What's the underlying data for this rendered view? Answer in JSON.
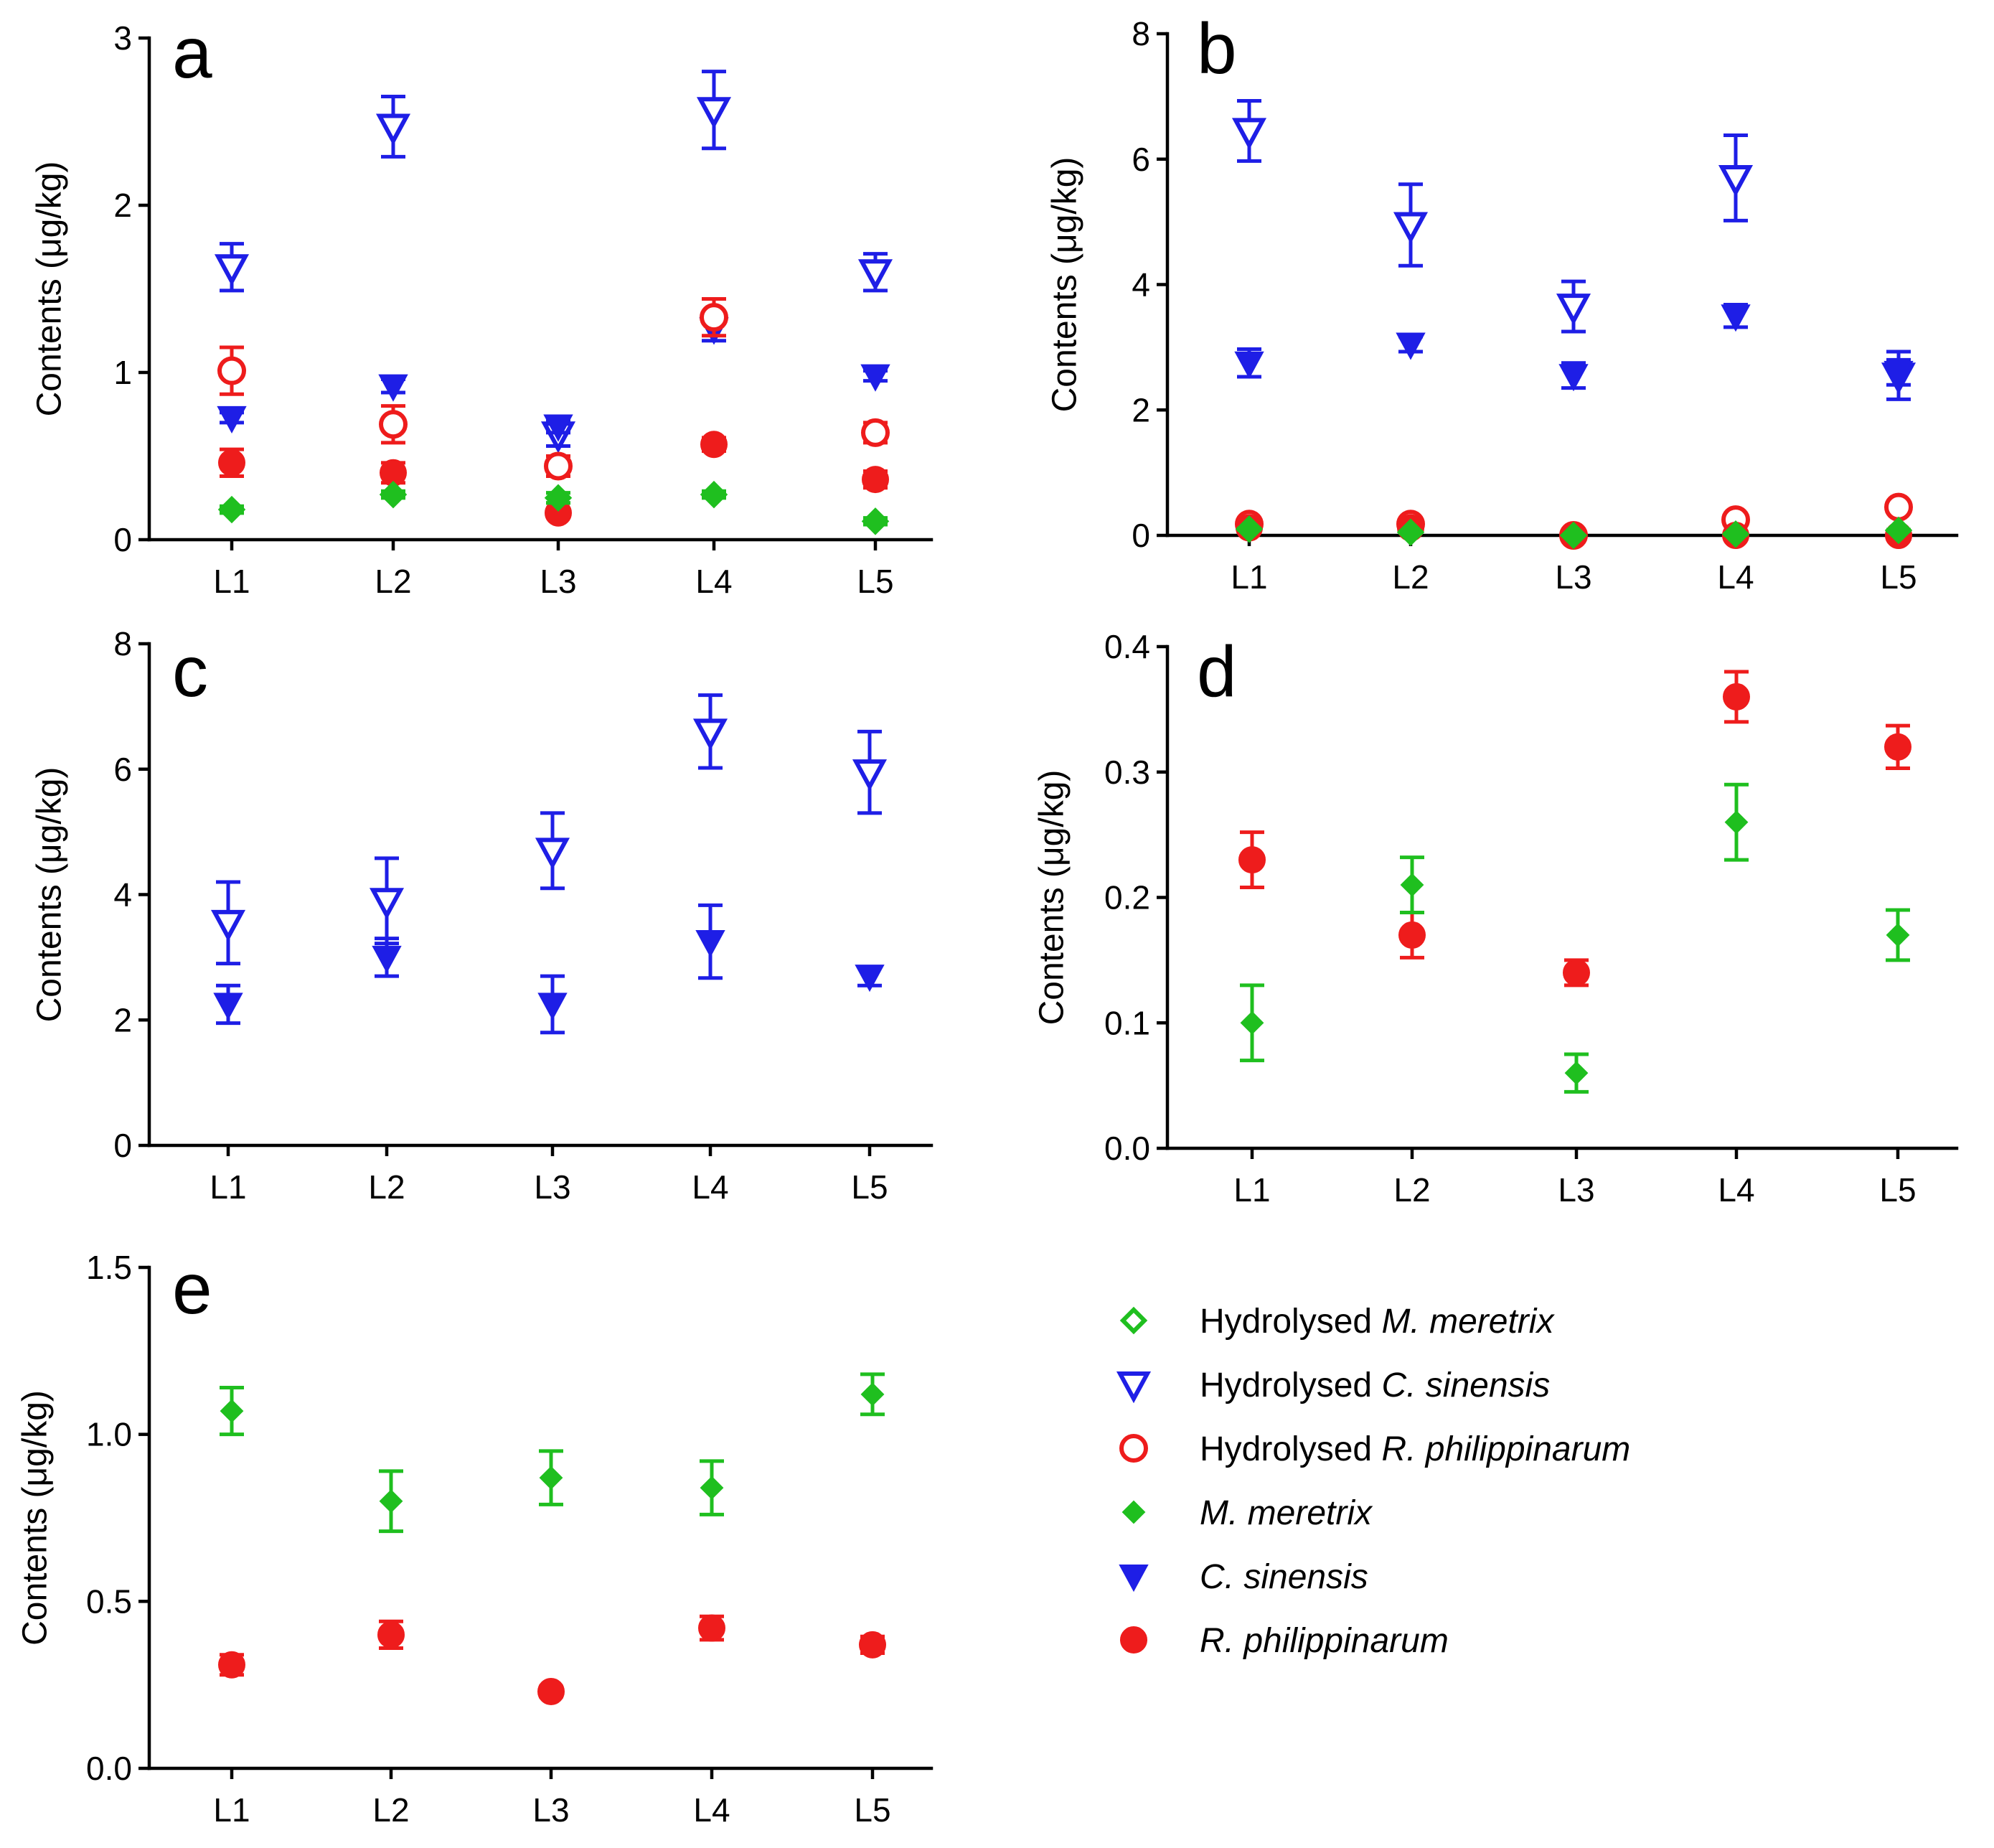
{
  "colors": {
    "mer": "#1fbf1f",
    "cs": "#1e1ee6",
    "rp": "#ee1c1c"
  },
  "legend": [
    {
      "key": "h_mer",
      "prefix": "Hydrolysed ",
      "species": "M. meretrix",
      "color": "#1fbf1f",
      "marker": "diamond-open"
    },
    {
      "key": "h_cs",
      "prefix": "Hydrolysed ",
      "species": "C. sinensis",
      "color": "#1e1ee6",
      "marker": "triangle-open"
    },
    {
      "key": "h_rp",
      "prefix": "Hydrolysed ",
      "species": "R. philippinarum",
      "color": "#ee1c1c",
      "marker": "circle-open"
    },
    {
      "key": "mer",
      "prefix": "",
      "species": "M. meretrix",
      "color": "#1fbf1f",
      "marker": "diamond"
    },
    {
      "key": "cs",
      "prefix": "",
      "species": "C. sinensis",
      "color": "#1e1ee6",
      "marker": "triangle"
    },
    {
      "key": "rp",
      "prefix": "",
      "species": "R. philippinarum",
      "color": "#ee1c1c",
      "marker": "circle"
    }
  ],
  "chart_data": [
    {
      "panel": "a",
      "type": "scatter",
      "ylabel": "Contents (μg/kg)",
      "categories": [
        "L1",
        "L2",
        "L3",
        "L4",
        "L5"
      ],
      "ylim": [
        0,
        3
      ],
      "yticks": [
        0,
        1,
        2,
        3
      ],
      "ytick_labels": [
        "0",
        "1",
        "2",
        "3"
      ],
      "series": [
        {
          "key": "h_cs",
          "name": "Hydrolysed C. sinensis",
          "values": [
            1.63,
            2.47,
            0.63,
            2.57,
            1.6
          ],
          "errors": [
            0.14,
            0.18,
            0.07,
            0.23,
            0.11
          ]
        },
        {
          "key": "cs",
          "name": "C. sinensis",
          "values": [
            0.73,
            0.92,
            0.68,
            1.26,
            0.98
          ],
          "errors": [
            0.03,
            0.04,
            0.04,
            0.07,
            0.03
          ]
        },
        {
          "key": "h_rp",
          "name": "Hydrolysed R. philippinarum",
          "values": [
            1.01,
            0.69,
            0.44,
            1.33,
            0.64
          ],
          "errors": [
            0.14,
            0.11,
            0.06,
            0.11,
            0.06
          ]
        },
        {
          "key": "rp",
          "name": "R. philippinarum",
          "values": [
            0.46,
            0.4,
            0.16,
            0.57,
            0.36
          ],
          "errors": [
            0.08,
            0.06,
            0.02,
            0.04,
            0.05
          ]
        },
        {
          "key": "h_mer",
          "name": "Hydrolysed M. meretrix",
          "values": [
            0.18,
            0.27,
            0.25,
            0.27,
            0.11
          ],
          "errors": [
            0.02,
            0.02,
            0.03,
            0.02,
            0.02
          ]
        },
        {
          "key": "mer",
          "name": "M. meretrix",
          "values": [
            0.18,
            0.27,
            0.25,
            0.27,
            0.11
          ],
          "errors": [
            0.02,
            0.02,
            0.03,
            0.02,
            0.02
          ]
        }
      ]
    },
    {
      "panel": "b",
      "type": "scatter",
      "ylabel": "Contents (μg/kg)",
      "categories": [
        "L1",
        "L2",
        "L3",
        "L4",
        "L5"
      ],
      "ylim": [
        0,
        8
      ],
      "yticks": [
        0,
        2,
        4,
        6,
        8
      ],
      "ytick_labels": [
        "0",
        "2",
        "4",
        "6",
        "8"
      ],
      "series": [
        {
          "key": "h_cs",
          "name": "Hydrolysed C. sinensis",
          "values": [
            6.45,
            4.95,
            3.65,
            5.7,
            2.55
          ],
          "errors": [
            0.48,
            0.65,
            0.4,
            0.68,
            0.38
          ]
        },
        {
          "key": "cs",
          "name": "C. sinensis",
          "values": [
            2.75,
            3.05,
            2.55,
            3.5,
            2.6
          ],
          "errors": [
            0.22,
            0.12,
            0.2,
            0.18,
            0.2
          ]
        },
        {
          "key": "h_rp",
          "name": "Hydrolysed R. philippinarum",
          "values": [
            0.18,
            0.18,
            0.0,
            0.25,
            0.45
          ],
          "errors": [
            0.02,
            0.02,
            0.01,
            0.02,
            0.03
          ]
        },
        {
          "key": "rp",
          "name": "R. philippinarum",
          "values": [
            0.12,
            0.12,
            0.0,
            0.0,
            0.0
          ],
          "errors": [
            0.02,
            0.02,
            0.0,
            0.0,
            0.0
          ]
        },
        {
          "key": "h_mer",
          "name": "Hydrolysed M. meretrix",
          "values": [
            0.1,
            0.05,
            0.0,
            0.02,
            0.08
          ],
          "errors": [
            0.01,
            0.01,
            0.0,
            0.01,
            0.01
          ]
        },
        {
          "key": "mer",
          "name": "M. meretrix",
          "values": [
            0.1,
            0.05,
            0.0,
            0.02,
            0.08
          ],
          "errors": [
            0.01,
            0.01,
            0.0,
            0.01,
            0.01
          ]
        }
      ]
    },
    {
      "panel": "c",
      "type": "scatter",
      "ylabel": "Contents (μg/kg)",
      "categories": [
        "L1",
        "L2",
        "L3",
        "L4",
        "L5"
      ],
      "ylim": [
        0,
        8
      ],
      "yticks": [
        0,
        2,
        4,
        6,
        8
      ],
      "ytick_labels": [
        "0",
        "2",
        "4",
        "6",
        "8"
      ],
      "series": [
        {
          "key": "h_cs",
          "name": "Hydrolysed C. sinensis",
          "values": [
            3.55,
            3.9,
            4.7,
            6.6,
            5.95
          ],
          "errors": [
            0.65,
            0.68,
            0.6,
            0.58,
            0.65
          ]
        },
        {
          "key": "cs",
          "name": "C. sinensis",
          "values": [
            2.25,
            3.0,
            2.25,
            3.25,
            2.7
          ],
          "errors": [
            0.3,
            0.3,
            0.45,
            0.58,
            0.15
          ]
        }
      ]
    },
    {
      "panel": "d",
      "type": "scatter",
      "ylabel": "Contents (μg/kg)",
      "categories": [
        "L1",
        "L2",
        "L3",
        "L4",
        "L5"
      ],
      "ylim": [
        0,
        0.4
      ],
      "yticks": [
        0,
        0.1,
        0.2,
        0.3,
        0.4
      ],
      "ytick_labels": [
        "0.0",
        "0.1",
        "0.2",
        "0.3",
        "0.4"
      ],
      "series": [
        {
          "key": "rp",
          "name": "R. philippinarum",
          "values": [
            0.23,
            0.17,
            0.14,
            0.36,
            0.32
          ],
          "errors": [
            0.022,
            0.018,
            0.01,
            0.02,
            0.017
          ]
        },
        {
          "key": "mer",
          "name": "M. meretrix",
          "values": [
            0.1,
            0.21,
            0.06,
            0.26,
            0.17
          ],
          "errors": [
            0.03,
            0.022,
            0.015,
            0.03,
            0.02
          ]
        }
      ]
    },
    {
      "panel": "e",
      "type": "scatter",
      "ylabel": "Contents (μg/kg)",
      "categories": [
        "L1",
        "L2",
        "L3",
        "L4",
        "L5"
      ],
      "ylim": [
        0,
        1.5
      ],
      "yticks": [
        0,
        0.5,
        1.0,
        1.5
      ],
      "ytick_labels": [
        "0.0",
        "0.5",
        "1.0",
        "1.5"
      ],
      "series": [
        {
          "key": "mer",
          "name": "M. meretrix",
          "values": [
            1.07,
            0.8,
            0.87,
            0.84,
            1.12
          ],
          "errors": [
            0.07,
            0.09,
            0.08,
            0.08,
            0.06
          ]
        },
        {
          "key": "rp",
          "name": "R. philippinarum",
          "values": [
            0.31,
            0.4,
            0.23,
            0.42,
            0.37
          ],
          "errors": [
            0.03,
            0.04,
            0.015,
            0.035,
            0.025
          ]
        }
      ]
    }
  ]
}
